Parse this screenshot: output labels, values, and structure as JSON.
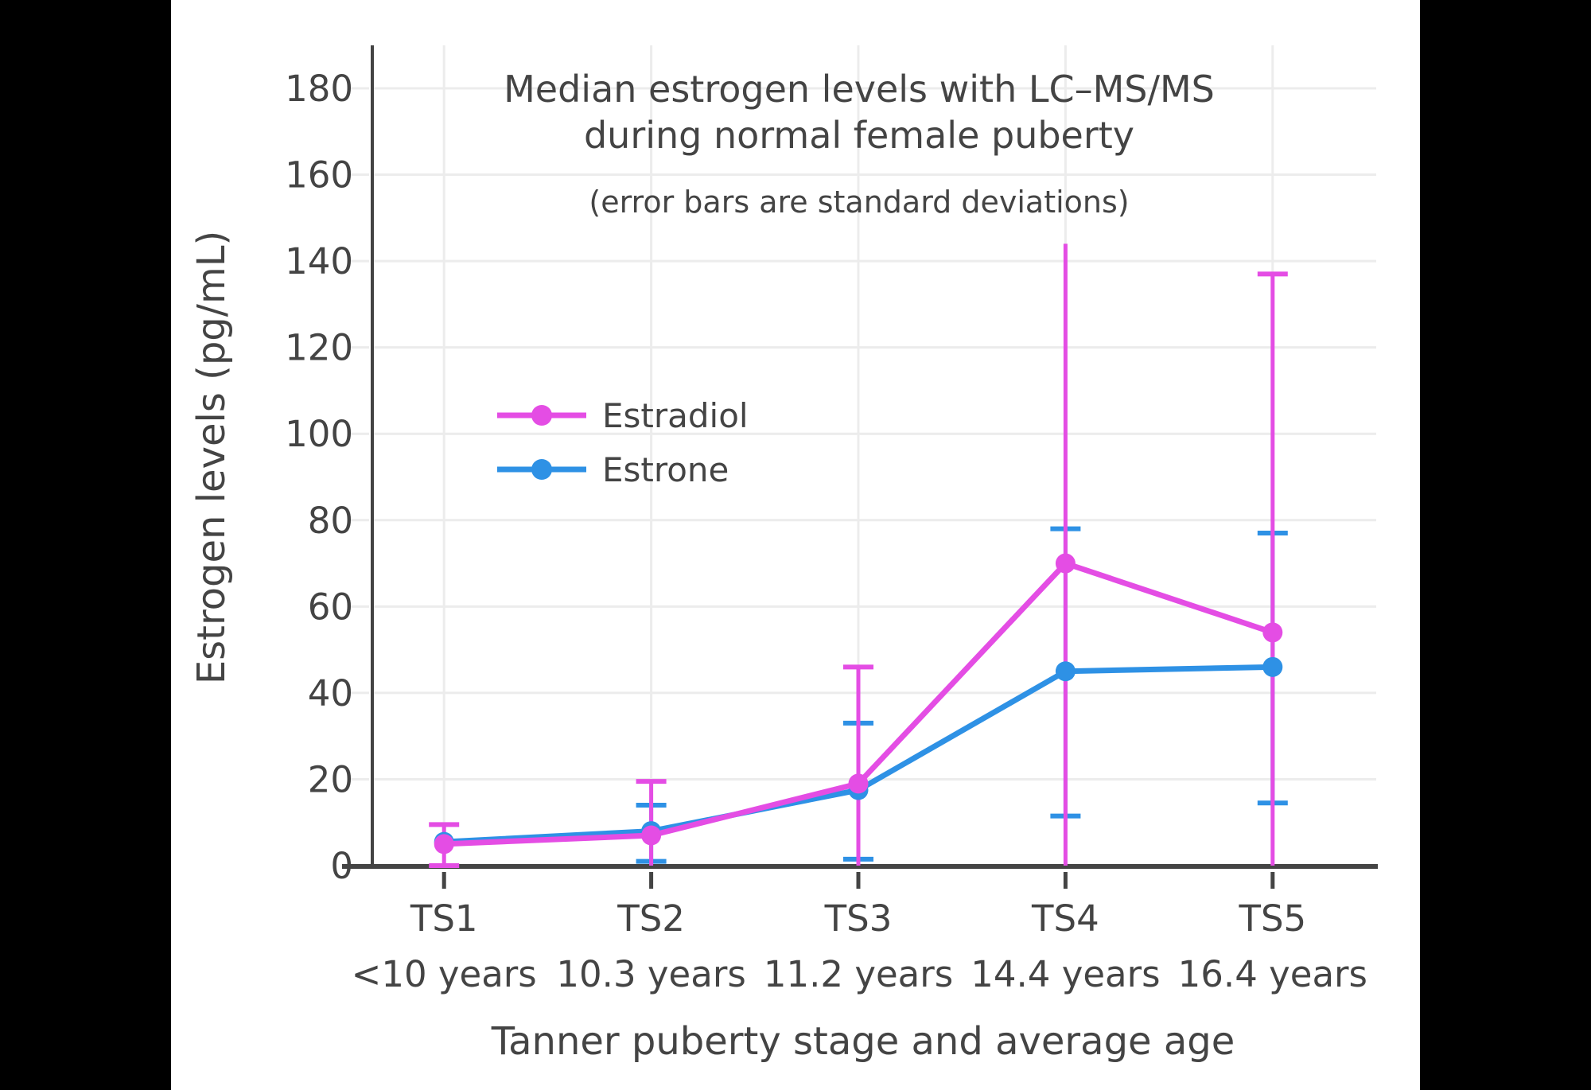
{
  "window": {
    "letterbox_color": "#000000",
    "canvas_color": "#ffffff"
  },
  "colors": {
    "text": "#444444",
    "axis_line": "#444444",
    "gridline": "#ECECEC",
    "estradiol": "#E44DE4",
    "estrone": "#2E91E5"
  },
  "chart_data": {
    "type": "line",
    "title_line1": "Median estrogen levels with LC–MS/MS",
    "title_line2": "during normal female puberty",
    "subtitle": "(error bars are standard deviations)",
    "xlabel": "Tanner puberty stage and average age",
    "ylabel": "Estrogen levels (pg/mL)",
    "ylim": [
      0,
      190
    ],
    "yticks": [
      0,
      20,
      40,
      60,
      80,
      100,
      120,
      140,
      160,
      180
    ],
    "grid": true,
    "legend_position": "inside-left-middle",
    "categories": [
      "TS1",
      "TS2",
      "TS3",
      "TS4",
      "TS5"
    ],
    "category_sublabels": [
      "<10 years",
      "10.3 years",
      "11.2 years",
      "14.4 years",
      "16.4 years"
    ],
    "series": [
      {
        "name": "Estradiol",
        "color": "#E44DE4",
        "values": [
          5,
          7,
          19,
          70,
          54
        ],
        "error_top": [
          9.5,
          19.5,
          46,
          144,
          137
        ],
        "error_bottom": [
          0,
          0,
          0,
          0,
          0
        ],
        "top_cap": [
          true,
          true,
          true,
          false,
          true
        ],
        "bottom_cap": [
          true,
          false,
          false,
          false,
          false
        ]
      },
      {
        "name": "Estrone",
        "color": "#2E91E5",
        "values": [
          5.5,
          8,
          17.5,
          45,
          46
        ],
        "error_top": [
          null,
          14,
          33,
          78,
          77
        ],
        "error_bottom": [
          null,
          1,
          1.5,
          11.5,
          14.5
        ],
        "top_cap": [
          false,
          true,
          true,
          true,
          true
        ],
        "bottom_cap": [
          false,
          true,
          true,
          true,
          true
        ]
      }
    ]
  }
}
